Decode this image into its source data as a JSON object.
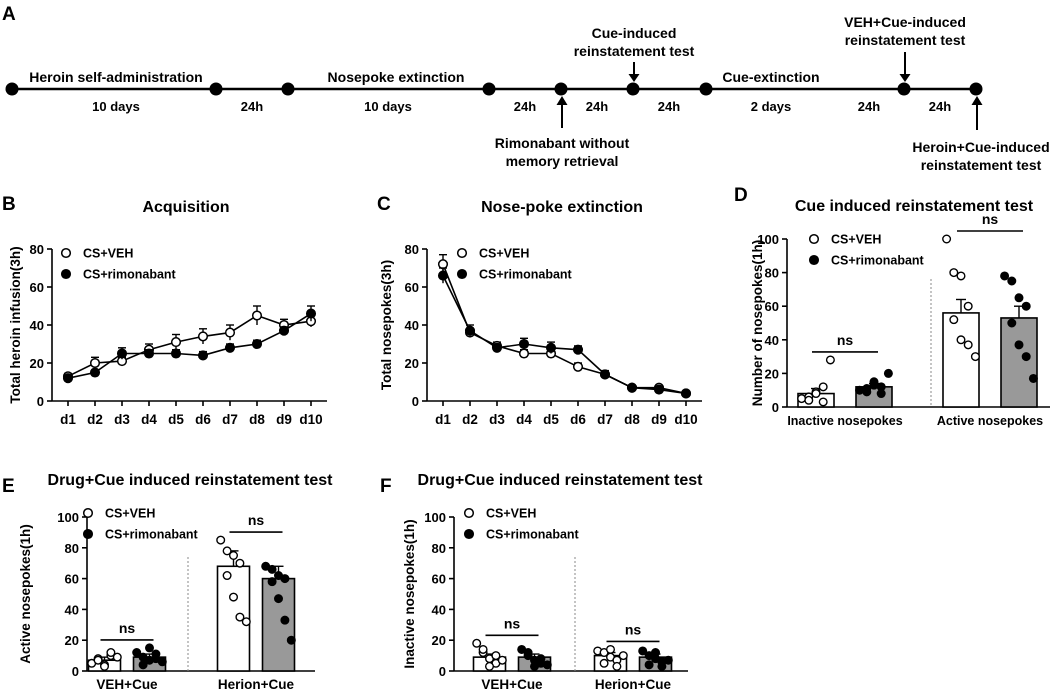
{
  "panels": {
    "A": "A",
    "B": "B",
    "C": "C",
    "D": "D",
    "E": "E",
    "F": "F"
  },
  "timeline": {
    "phase_labels": [
      "Heroin self-administration",
      "Nosepoke extinction",
      "Cue-extinction"
    ],
    "duration_labels": [
      "10 days",
      "24h",
      "10 days",
      "24h",
      "24h",
      "24h",
      "2 days",
      "24h",
      "24h"
    ],
    "events": {
      "cue_test": [
        "Cue-induced",
        "reinstatement test"
      ],
      "veh_test": [
        "VEH+Cue-induced",
        "reinstatement test"
      ],
      "rimonabant": [
        "Rimonabant without",
        "memory retrieval"
      ],
      "heroin_test": [
        "Heroin+Cue-induced",
        "reinstatement test"
      ]
    }
  },
  "colors": {
    "line": "#000000",
    "veh_fill": "#ffffff",
    "rimo_fill": "#999999",
    "divider": "#888888"
  },
  "chart_data": [
    {
      "id": "B",
      "type": "line",
      "title": "Acquisition",
      "xlabel": "",
      "ylabel": "Total heroin infusion(3h)",
      "categories": [
        "d1",
        "d2",
        "d3",
        "d4",
        "d5",
        "d6",
        "d7",
        "d8",
        "d9",
        "d10"
      ],
      "ylim": [
        0,
        80
      ],
      "yticks": [
        0,
        20,
        40,
        60,
        80
      ],
      "series": [
        {
          "name": "CS+VEH",
          "marker": "open",
          "values": [
            13,
            20,
            21,
            27,
            31,
            34,
            36,
            45,
            40,
            42
          ],
          "errors": [
            1.5,
            3,
            2,
            3,
            4,
            4,
            4,
            5,
            3,
            3
          ]
        },
        {
          "name": "CS+rimonabant",
          "marker": "filled",
          "values": [
            12,
            15,
            25,
            25,
            25,
            24,
            28,
            30,
            37,
            46
          ],
          "errors": [
            1,
            1,
            3,
            2,
            2,
            2,
            2,
            2,
            2,
            4
          ]
        }
      ]
    },
    {
      "id": "C",
      "type": "line",
      "title": "Nose-poke extinction",
      "xlabel": "",
      "ylabel": "Total nosepokes(3h)",
      "categories": [
        "d1",
        "d2",
        "d3",
        "d4",
        "d5",
        "d6",
        "d7",
        "d8",
        "d9",
        "d10"
      ],
      "ylim": [
        0,
        80
      ],
      "yticks": [
        0,
        20,
        40,
        60,
        80
      ],
      "series": [
        {
          "name": "CS+VEH",
          "marker": "open",
          "values": [
            72,
            36,
            29,
            25,
            25,
            18,
            14,
            7,
            7,
            4
          ],
          "errors": [
            5,
            2,
            2,
            2,
            2,
            2,
            2,
            1,
            1,
            1
          ]
        },
        {
          "name": "CS+rimonabant",
          "marker": "filled",
          "values": [
            66,
            37,
            28,
            30,
            28,
            27,
            14,
            7,
            6,
            4
          ],
          "errors": [
            4,
            3,
            2,
            3,
            3,
            2,
            1,
            1,
            1,
            1
          ]
        }
      ]
    },
    {
      "id": "D",
      "type": "bar",
      "title": "Cue induced reinstatement test",
      "ylabel": "Number of nosepokes(1h)",
      "categories": [
        "Inactive nosepokes",
        "Active nosepokes"
      ],
      "ylim": [
        0,
        100
      ],
      "yticks": [
        0,
        20,
        40,
        60,
        80,
        100
      ],
      "annotations": [
        "ns",
        "ns"
      ],
      "series": [
        {
          "name": "CS+VEH",
          "values": [
            8,
            56
          ],
          "errors": [
            3,
            8
          ],
          "points": [
            [
              5,
              6,
              9,
              12,
              4,
              8,
              3,
              28
            ],
            [
              100,
              80,
              78,
              60,
              52,
              40,
              37,
              30
            ]
          ]
        },
        {
          "name": "CS+rimonabant",
          "values": [
            12,
            53
          ],
          "errors": [
            2,
            7
          ],
          "points": [
            [
              10,
              11,
              13,
              12,
              9,
              15,
              8,
              20
            ],
            [
              78,
              75,
              65,
              60,
              50,
              37,
              30,
              17
            ]
          ]
        }
      ]
    },
    {
      "id": "E",
      "type": "bar",
      "title": "Drug+Cue induced reinstatement test",
      "ylabel": "Active nosepokes(1h)",
      "categories": [
        "VEH+Cue",
        "Herion+Cue"
      ],
      "ylim": [
        0,
        100
      ],
      "yticks": [
        0,
        20,
        40,
        60,
        80,
        100
      ],
      "annotations": [
        "ns",
        "ns"
      ],
      "series": [
        {
          "name": "CS+VEH",
          "values": [
            7,
            68
          ],
          "errors": [
            2,
            10
          ],
          "points": [
            [
              5,
              8,
              4,
              10,
              7,
              3,
              12,
              9
            ],
            [
              85,
              78,
              75,
              70,
              62,
              48,
              35,
              32
            ]
          ]
        },
        {
          "name": "CS+rimonabant",
          "values": [
            9,
            60
          ],
          "errors": [
            2,
            8
          ],
          "points": [
            [
              12,
              9,
              7,
              11,
              4,
              15,
              8,
              6
            ],
            [
              68,
              66,
              62,
              60,
              58,
              47,
              33,
              20
            ]
          ]
        }
      ]
    },
    {
      "id": "F",
      "type": "bar",
      "title": "Drug+Cue induced reinstatement test",
      "ylabel": "Inactive nosepokes(1h)",
      "categories": [
        "VEH+Cue",
        "Herion+Cue"
      ],
      "ylim": [
        0,
        100
      ],
      "yticks": [
        0,
        20,
        40,
        60,
        80,
        100
      ],
      "annotations": [
        "ns",
        "ns"
      ],
      "series": [
        {
          "name": "CS+VEH",
          "values": [
            9,
            10
          ],
          "errors": [
            2,
            2
          ],
          "points": [
            [
              18,
              12,
              8,
              5,
              14,
              3,
              10,
              7
            ],
            [
              13,
              12,
              9,
              7,
              5,
              14,
              3,
              10
            ]
          ]
        },
        {
          "name": "CS+rimonabant",
          "values": [
            9,
            9
          ],
          "errors": [
            2,
            2
          ],
          "points": [
            [
              14,
              10,
              7,
              5,
              12,
              3,
              8,
              4
            ],
            [
              13,
              10,
              8,
              6,
              4,
              12,
              3,
              7
            ]
          ]
        }
      ]
    }
  ]
}
